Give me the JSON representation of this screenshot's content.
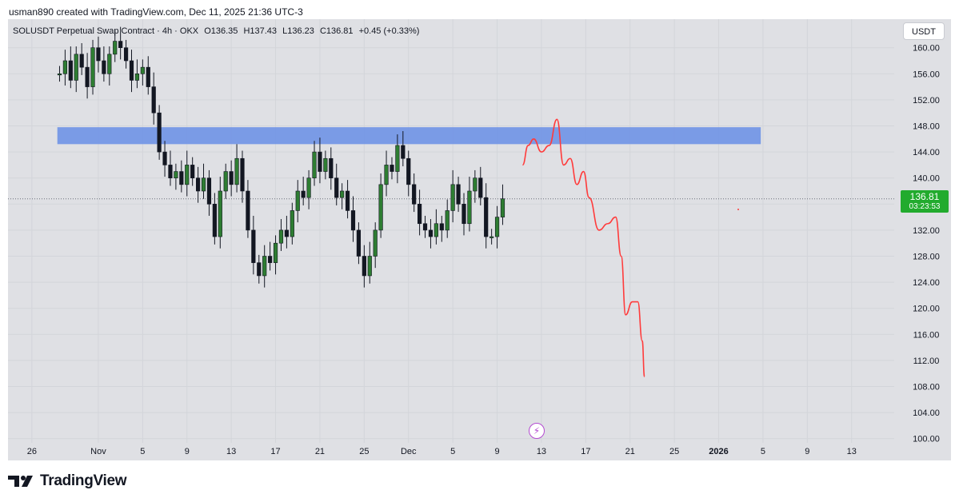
{
  "header": {
    "text": "usman890 created with TradingView.com, Dec 11, 2025 21:36 UTC-3"
  },
  "symbol": {
    "name": "SOLUSDT Perpetual Swap Contract · 4h · OKX",
    "open": "O136.35",
    "high": "H137.43",
    "low": "L136.23",
    "close": "C136.81",
    "change": "+0.45 (+0.33%)"
  },
  "currency_button": "USDT",
  "last_price": {
    "value": "136.81",
    "countdown": "03:23:53"
  },
  "footer": {
    "logo_text": "TradingView"
  },
  "colors": {
    "background": "#dfe0e4",
    "candle": "#131722",
    "zone": "#6f93e6",
    "projection": "#ff3b3b",
    "price_badge": "#22ab2e"
  },
  "chart_data": {
    "type": "candlestick",
    "instrument": "SOLUSDT Perpetual Swap Contract",
    "timeframe": "4h",
    "exchange": "OKX",
    "ylim": [
      98,
      163
    ],
    "y_ticks": [
      "100.00",
      "104.00",
      "108.00",
      "112.00",
      "116.00",
      "120.00",
      "124.00",
      "128.00",
      "132.00",
      "136.00",
      "140.00",
      "144.00",
      "148.00",
      "152.00",
      "156.00",
      "160.00"
    ],
    "x_ticks": [
      "26",
      "Nov",
      "5",
      "9",
      "13",
      "17",
      "21",
      "25",
      "Dec",
      "5",
      "9",
      "13",
      "17",
      "21",
      "25",
      "2026",
      "5",
      "9",
      "13"
    ],
    "x_tick_bold": "2026",
    "candles_close_path": [
      {
        "x": 4.5,
        "c": 156
      },
      {
        "x": 5.0,
        "c": 158
      },
      {
        "x": 5.5,
        "c": 155
      },
      {
        "x": 6.0,
        "c": 159
      },
      {
        "x": 6.5,
        "c": 157
      },
      {
        "x": 7.0,
        "c": 154
      },
      {
        "x": 7.5,
        "c": 160
      },
      {
        "x": 8.0,
        "c": 158
      },
      {
        "x": 8.5,
        "c": 156
      },
      {
        "x": 9.0,
        "c": 159
      },
      {
        "x": 9.5,
        "c": 161
      },
      {
        "x": 10.0,
        "c": 160
      },
      {
        "x": 10.5,
        "c": 158
      },
      {
        "x": 11.0,
        "c": 155
      },
      {
        "x": 11.5,
        "c": 156
      },
      {
        "x": 12.0,
        "c": 157
      },
      {
        "x": 12.5,
        "c": 154
      },
      {
        "x": 13.0,
        "c": 150
      },
      {
        "x": 13.5,
        "c": 144
      },
      {
        "x": 14.0,
        "c": 142
      },
      {
        "x": 14.5,
        "c": 140
      },
      {
        "x": 15.0,
        "c": 141
      },
      {
        "x": 15.5,
        "c": 139
      },
      {
        "x": 16.0,
        "c": 142
      },
      {
        "x": 16.5,
        "c": 140
      },
      {
        "x": 17.0,
        "c": 138
      },
      {
        "x": 17.5,
        "c": 140
      },
      {
        "x": 18.0,
        "c": 136
      },
      {
        "x": 18.5,
        "c": 131
      },
      {
        "x": 19.0,
        "c": 138
      },
      {
        "x": 19.5,
        "c": 141
      },
      {
        "x": 20.0,
        "c": 139
      },
      {
        "x": 20.5,
        "c": 143
      },
      {
        "x": 21.0,
        "c": 138
      },
      {
        "x": 21.5,
        "c": 132
      },
      {
        "x": 22.0,
        "c": 127
      },
      {
        "x": 22.5,
        "c": 125
      },
      {
        "x": 23.0,
        "c": 128
      },
      {
        "x": 23.5,
        "c": 127
      },
      {
        "x": 24.0,
        "c": 130
      },
      {
        "x": 24.5,
        "c": 132
      },
      {
        "x": 25.0,
        "c": 131
      },
      {
        "x": 25.5,
        "c": 135
      },
      {
        "x": 26.0,
        "c": 138
      },
      {
        "x": 26.5,
        "c": 137
      },
      {
        "x": 27.0,
        "c": 140
      },
      {
        "x": 27.5,
        "c": 144
      },
      {
        "x": 28.0,
        "c": 141
      },
      {
        "x": 28.5,
        "c": 143
      },
      {
        "x": 29.0,
        "c": 140
      },
      {
        "x": 29.5,
        "c": 137
      },
      {
        "x": 30.0,
        "c": 138
      },
      {
        "x": 30.5,
        "c": 135
      },
      {
        "x": 31.0,
        "c": 132
      },
      {
        "x": 31.5,
        "c": 128
      },
      {
        "x": 32.0,
        "c": 125
      },
      {
        "x": 32.5,
        "c": 128
      },
      {
        "x": 33.0,
        "c": 132
      },
      {
        "x": 33.5,
        "c": 139
      },
      {
        "x": 34.0,
        "c": 142
      },
      {
        "x": 34.5,
        "c": 141
      },
      {
        "x": 35.0,
        "c": 145
      },
      {
        "x": 35.5,
        "c": 143
      },
      {
        "x": 36.0,
        "c": 139
      },
      {
        "x": 36.5,
        "c": 136
      },
      {
        "x": 37.0,
        "c": 133
      },
      {
        "x": 37.5,
        "c": 132
      },
      {
        "x": 38.0,
        "c": 131
      },
      {
        "x": 38.5,
        "c": 133
      },
      {
        "x": 39.0,
        "c": 132
      },
      {
        "x": 39.5,
        "c": 135
      },
      {
        "x": 40.0,
        "c": 139
      },
      {
        "x": 40.5,
        "c": 136
      },
      {
        "x": 41.0,
        "c": 133
      },
      {
        "x": 41.5,
        "c": 138
      },
      {
        "x": 42.0,
        "c": 140
      },
      {
        "x": 42.5,
        "c": 137
      },
      {
        "x": 43.0,
        "c": 131
      },
      {
        "x": 43.5,
        "c": 131
      },
      {
        "x": 44.0,
        "c": 134
      },
      {
        "x": 44.5,
        "c": 136.81
      }
    ],
    "resistance_zone": {
      "y_low": 145.2,
      "y_high": 147.8,
      "x_start": 4.3,
      "x_end": 67.8
    },
    "projection_path": [
      {
        "x": 46.3,
        "c": 142
      },
      {
        "x": 46.8,
        "c": 145
      },
      {
        "x": 47.3,
        "c": 146
      },
      {
        "x": 48.0,
        "c": 144
      },
      {
        "x": 48.7,
        "c": 145
      },
      {
        "x": 49.4,
        "c": 149
      },
      {
        "x": 50.0,
        "c": 142
      },
      {
        "x": 50.6,
        "c": 143
      },
      {
        "x": 51.2,
        "c": 139
      },
      {
        "x": 51.8,
        "c": 141
      },
      {
        "x": 52.3,
        "c": 137
      },
      {
        "x": 53.2,
        "c": 132
      },
      {
        "x": 54.0,
        "c": 133
      },
      {
        "x": 54.7,
        "c": 134
      },
      {
        "x": 55.2,
        "c": 128
      },
      {
        "x": 55.6,
        "c": 119
      },
      {
        "x": 56.2,
        "c": 121
      },
      {
        "x": 56.7,
        "c": 121
      },
      {
        "x": 57.1,
        "c": 115
      },
      {
        "x": 57.3,
        "c": 109.5
      }
    ],
    "last_price_line": 136.81,
    "grid": true
  }
}
